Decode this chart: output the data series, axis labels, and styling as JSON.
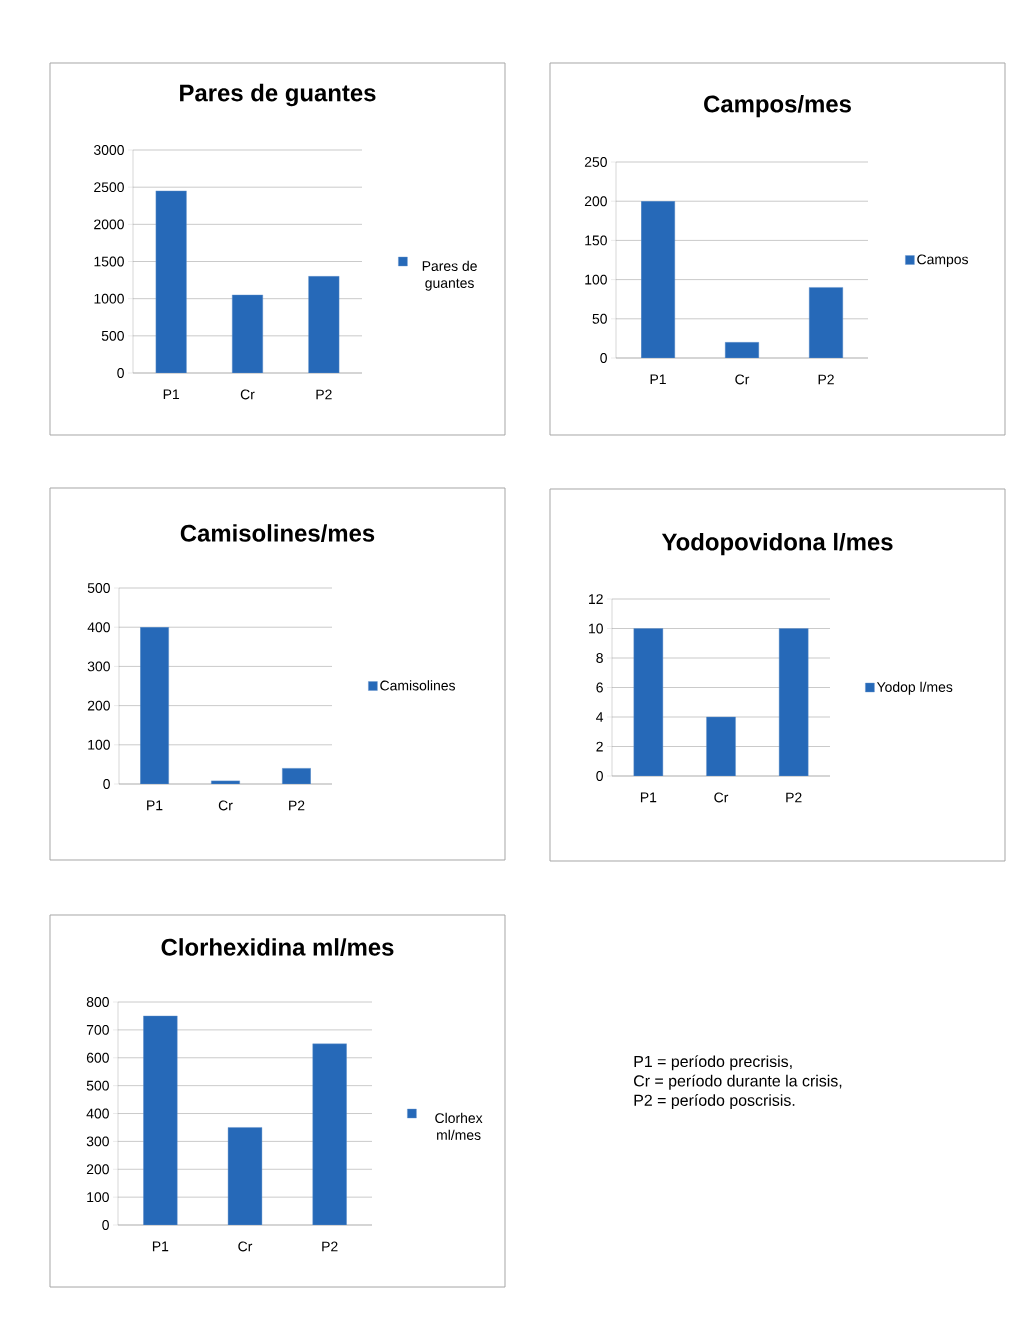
{
  "chart_data": [
    {
      "type": "bar",
      "title": "Pares de guantes",
      "categories": [
        "P1",
        "Cr",
        "P2"
      ],
      "series": [
        {
          "name": "Pares de guantes",
          "color": "#2669b8",
          "values": [
            2450,
            1050,
            1300
          ]
        }
      ],
      "ylim": [
        0,
        3000
      ],
      "yticks": [
        0,
        500,
        1000,
        1500,
        2000,
        2500,
        3000
      ],
      "grid": "y",
      "legend": "right"
    },
    {
      "type": "bar",
      "title": "Campos/mes",
      "categories": [
        "P1",
        "Cr",
        "P2"
      ],
      "series": [
        {
          "name": "Campos",
          "color": "#2669b8",
          "values": [
            200,
            20,
            90
          ]
        }
      ],
      "ylim": [
        0,
        250
      ],
      "yticks": [
        0,
        50,
        100,
        150,
        200,
        250
      ],
      "grid": "y",
      "legend": "right"
    },
    {
      "type": "bar",
      "title": "Camisolines/mes",
      "categories": [
        "P1",
        "Cr",
        "P2"
      ],
      "series": [
        {
          "name": "Camisolines",
          "color": "#2669b8",
          "values": [
            400,
            8,
            40
          ]
        }
      ],
      "ylim": [
        0,
        500
      ],
      "yticks": [
        0,
        100,
        200,
        300,
        400,
        500
      ],
      "grid": "y",
      "legend": "right"
    },
    {
      "type": "bar",
      "title": "Yodopovidona l/mes",
      "categories": [
        "P1",
        "Cr",
        "P2"
      ],
      "series": [
        {
          "name": "Yodop l/mes",
          "color": "#2669b8",
          "values": [
            10,
            4,
            10
          ]
        }
      ],
      "ylim": [
        0,
        12
      ],
      "yticks": [
        0,
        2,
        4,
        6,
        8,
        10,
        12
      ],
      "grid": "y",
      "legend": "right"
    },
    {
      "type": "bar",
      "title": "Clorhexidina ml/mes",
      "categories": [
        "P1",
        "Cr",
        "P2"
      ],
      "series": [
        {
          "name": "Clorhex ml/mes",
          "color": "#2669b8",
          "values": [
            750,
            350,
            650
          ]
        }
      ],
      "ylim": [
        0,
        800
      ],
      "yticks": [
        0,
        100,
        200,
        300,
        400,
        500,
        600,
        700,
        800
      ],
      "grid": "y",
      "legend": "right"
    },
    {
      "type": "other",
      "annotations": [
        "P1 = período precrisis,",
        "Cr = período durante la crisis,",
        "P2 = período poscrisis."
      ]
    }
  ]
}
